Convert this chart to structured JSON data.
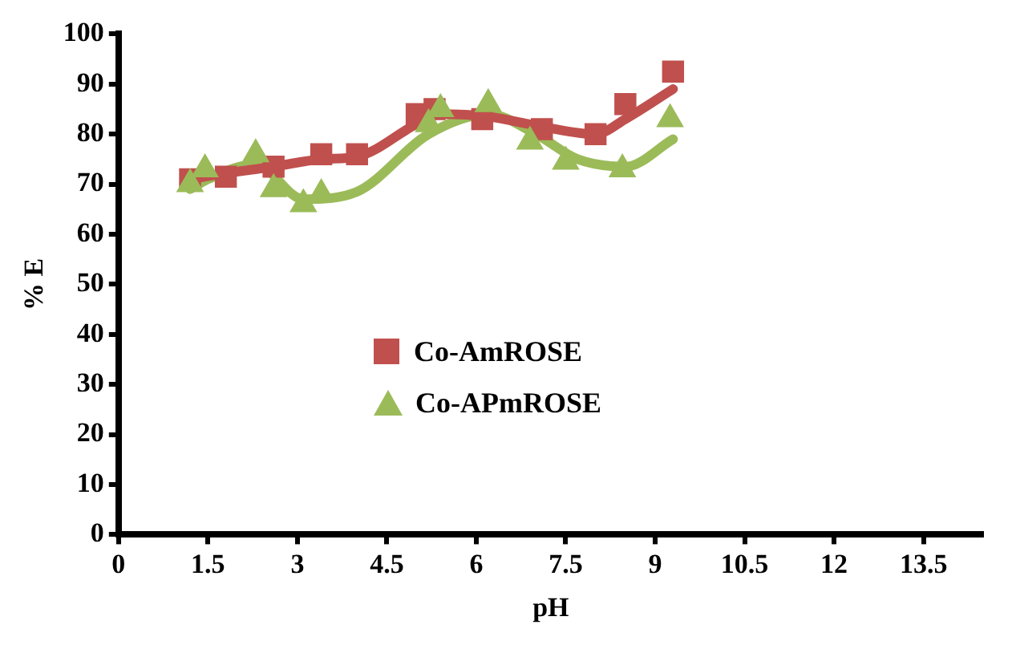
{
  "chart_data": {
    "type": "scatter",
    "xlabel": "pH",
    "ylabel": "% E",
    "xlim": [
      0,
      14.5
    ],
    "xticks": [
      0,
      1.5,
      3,
      4.5,
      6,
      7.5,
      9,
      10.5,
      12,
      13.5
    ],
    "ylim": [
      0,
      100
    ],
    "yticks": [
      0,
      10,
      20,
      30,
      40,
      50,
      60,
      70,
      80,
      90,
      100
    ],
    "grid": false,
    "legend": "left",
    "series": [
      {
        "name": "Co-AmROSE",
        "marker": "square",
        "color": "#c0504d",
        "x": [
          1.2,
          1.8,
          2.6,
          3.4,
          4.0,
          5.0,
          5.3,
          6.1,
          7.1,
          8.0,
          8.5,
          9.3
        ],
        "values": [
          71,
          71.5,
          73.5,
          76,
          76,
          84,
          85,
          83,
          81,
          80,
          86,
          92.5
        ]
      },
      {
        "name": "Co-APmROSE",
        "marker": "triangle",
        "color": "#9bbb59",
        "x": [
          1.2,
          1.45,
          2.3,
          2.6,
          3.1,
          3.4,
          5.2,
          5.4,
          6.2,
          6.9,
          7.5,
          8.45,
          9.25
        ],
        "values": [
          70,
          73,
          76,
          69,
          66,
          68,
          82,
          85,
          86,
          78.5,
          74.5,
          73,
          83
        ]
      },
      {
        "type": "line",
        "marker": "none",
        "line_style": "solid",
        "color": "#c0504d",
        "x": [
          1.2,
          1.7,
          2.6,
          3.4,
          4.0,
          5.0,
          5.4,
          6.2,
          7.1,
          8.0,
          8.5,
          9.3
        ],
        "values": [
          71,
          72,
          73.5,
          75,
          75.5,
          82,
          84,
          83.5,
          81.5,
          80,
          83,
          89
        ]
      },
      {
        "type": "line",
        "marker": "none",
        "line_style": "solid",
        "color": "#9bbb59",
        "x": [
          1.2,
          1.5,
          2.3,
          3.1,
          4.0,
          5.2,
          6.2,
          7.0,
          7.7,
          8.5,
          9.3
        ],
        "values": [
          69,
          71,
          74,
          67,
          68.5,
          80,
          84,
          80,
          75,
          73.5,
          79
        ]
      }
    ]
  }
}
